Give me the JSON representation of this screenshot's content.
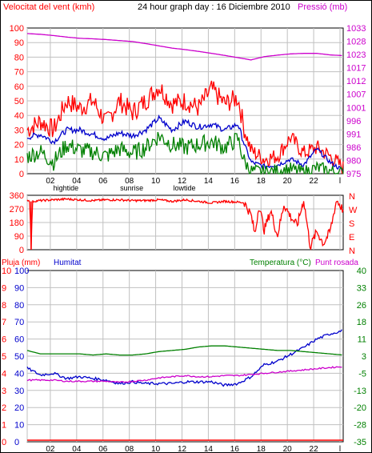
{
  "header": {
    "wind_label": "Velocitat del vent (kmh)",
    "title": "24 hour graph day : 16 Diciembre 2010",
    "pressure_label": "Pressió (mb)"
  },
  "colors": {
    "wind_max": "#ff0000",
    "wind_avg": "#0000cc",
    "wind_min": "#008000",
    "pressure": "#cc00cc",
    "direction": "#ff0000",
    "rain": "#ff0000",
    "humidity": "#0000cc",
    "temperature": "#008000",
    "dewpoint": "#cc00cc",
    "grid": "#c0c0c0",
    "bg": "#ffffff"
  },
  "time_axis": {
    "tick_labels": [
      "02",
      "04",
      "06",
      "08",
      "10",
      "12",
      "14",
      "16",
      "18",
      "20",
      "22",
      "l"
    ],
    "event_labels": [
      {
        "label": "hightide",
        "hour": 3
      },
      {
        "label": "sunrise",
        "hour": 8
      },
      {
        "label": "lowtide",
        "hour": 12
      }
    ]
  },
  "direction_axis": {
    "left_ticks": [
      "360",
      "270",
      "180",
      "90",
      "0"
    ],
    "right_letters": [
      "N",
      "W",
      "S",
      "E",
      "N"
    ]
  },
  "lower": {
    "rain_label": "Pluja (mm)",
    "humidity_label": "Humitat",
    "temp_label": "Temperatura (°C)",
    "dew_label": "Punt rosada"
  },
  "chart_data": [
    {
      "type": "line",
      "title": "24 hour graph day : 16 Diciembre 2010",
      "xlabel": "",
      "ylabel": "Velocitat del vent (kmh)",
      "y2label": "Pressió (mb)",
      "xlim": [
        0,
        24
      ],
      "ylim": [
        0,
        100
      ],
      "y2lim": [
        975,
        1033
      ],
      "yticks": [
        0,
        10,
        20,
        30,
        40,
        50,
        60,
        70,
        80,
        90,
        100
      ],
      "y2ticks": [
        "975",
        "980",
        "986",
        "991",
        "996",
        "1001",
        "1007",
        "1012",
        "1017",
        "1023",
        "1028",
        "1033"
      ],
      "series": [
        {
          "key": "wind_max",
          "x": [
            0,
            1,
            2,
            3,
            4,
            5,
            6,
            7,
            8,
            9,
            10,
            11,
            12,
            13,
            14,
            15,
            16,
            16.5,
            17,
            18,
            19,
            20,
            21,
            22,
            23,
            24
          ],
          "values": [
            30,
            36,
            30,
            50,
            45,
            50,
            35,
            50,
            42,
            50,
            60,
            48,
            50,
            45,
            58,
            48,
            52,
            30,
            16,
            10,
            12,
            25,
            14,
            18,
            12,
            4
          ]
        },
        {
          "key": "wind_avg",
          "x": [
            0,
            1,
            2,
            3,
            4,
            5,
            6,
            7,
            8,
            9,
            10,
            11,
            12,
            13,
            14,
            15,
            16,
            16.5,
            17,
            18,
            19,
            20,
            21,
            22,
            23,
            24
          ],
          "values": [
            25,
            27,
            22,
            30,
            30,
            27,
            24,
            28,
            26,
            30,
            38,
            30,
            36,
            32,
            34,
            30,
            34,
            20,
            8,
            5,
            6,
            10,
            6,
            17,
            8,
            2
          ]
        },
        {
          "key": "wind_min",
          "x": [
            0,
            1,
            2,
            3,
            4,
            5,
            6,
            7,
            8,
            9,
            10,
            11,
            12,
            13,
            14,
            15,
            16,
            16.5,
            17,
            18,
            19,
            20,
            21,
            22,
            23,
            24
          ],
          "values": [
            12,
            15,
            8,
            20,
            16,
            15,
            12,
            17,
            14,
            18,
            26,
            20,
            18,
            20,
            22,
            18,
            24,
            8,
            2,
            1,
            2,
            3,
            1,
            4,
            2,
            0
          ]
        },
        {
          "key": "pressure",
          "axis": "y2",
          "x": [
            0,
            1,
            2,
            3,
            4,
            5,
            6,
            7,
            8,
            9,
            10,
            11,
            12,
            13,
            14,
            15,
            16,
            17,
            18,
            19,
            20,
            21,
            22,
            23,
            24
          ],
          "values": [
            "1030.8",
            "1030.5",
            "1030.0",
            "1029.4",
            "1028.9",
            "1028.7",
            "1028.4",
            "1028.0",
            "1027.6",
            "1026.8",
            "1025.9",
            "1025.0",
            "1024.4",
            "1023.7",
            "1022.9",
            "1022.1",
            "1021.2",
            "1020.3",
            "1021.6",
            "1022.2",
            "1022.7",
            "1022.9",
            "1022.9",
            "1022.3",
            "1022.0"
          ]
        }
      ]
    },
    {
      "type": "line",
      "title": "",
      "ylabel": "Direcció",
      "xlim": [
        0,
        24
      ],
      "ylim": [
        0,
        360
      ],
      "series": [
        {
          "key": "direction",
          "x": [
            0,
            0.2,
            0.3,
            0.4,
            1,
            2,
            3,
            4,
            5,
            6,
            7,
            8,
            9,
            10,
            11,
            12,
            13,
            14,
            15,
            16,
            16.5,
            17,
            17.3,
            17.6,
            18,
            18.5,
            19,
            19.5,
            20,
            20.5,
            21,
            21.5,
            22,
            22.5,
            23,
            23.5,
            24
          ],
          "values": [
            330,
            320,
            0,
            320,
            325,
            330,
            335,
            330,
            325,
            330,
            330,
            325,
            325,
            330,
            320,
            330,
            320,
            310,
            320,
            315,
            310,
            230,
            100,
            300,
            130,
            260,
            90,
            300,
            220,
            160,
            330,
            20,
            120,
            40,
            120,
            330,
            260
          ]
        }
      ]
    },
    {
      "type": "line",
      "title": "",
      "ylabel": "Pluja (mm)",
      "y2label": "Temperatura (°C)",
      "xlim": [
        0,
        24
      ],
      "ylim": [
        0,
        100
      ],
      "yticks_rain": [
        "0",
        "1",
        "2",
        "3",
        "4",
        "5",
        "6",
        "7",
        "8",
        "9",
        "10"
      ],
      "yticks_hum": [
        "0",
        "10",
        "20",
        "30",
        "40",
        "50",
        "60",
        "70",
        "80",
        "90",
        "100"
      ],
      "y2ticks": [
        "-35",
        "-28",
        "-20",
        "-13",
        "-5",
        "3",
        "11",
        "18",
        "26",
        "33",
        "40"
      ],
      "series": [
        {
          "key": "rain",
          "name": "Pluja (mm)",
          "x": [
            0,
            24
          ],
          "values": [
            0,
            0
          ]
        },
        {
          "key": "humidity",
          "name": "Humitat",
          "x": [
            0,
            1,
            2,
            3,
            4,
            5,
            6,
            7,
            8,
            9,
            10,
            11,
            12,
            13,
            14,
            15,
            16,
            17,
            18,
            19,
            20,
            21,
            22,
            23,
            24
          ],
          "values": [
            43,
            39,
            40,
            37,
            38,
            37,
            36,
            34,
            35,
            34,
            34,
            34,
            35,
            35,
            35,
            33,
            34,
            38,
            45,
            47,
            51,
            55,
            60,
            63,
            65
          ]
        },
        {
          "key": "temperature",
          "name": "Temperatura (°C)",
          "axis": "y2",
          "x": [
            0,
            1,
            2,
            3,
            4,
            5,
            6,
            7,
            8,
            9,
            10,
            11,
            12,
            13,
            14,
            15,
            16,
            17,
            18,
            19,
            20,
            21,
            22,
            23,
            24
          ],
          "values": [
            "5.0",
            "3.5",
            "3.5",
            "3.5",
            "3.5",
            "3.0",
            "3.5",
            "3.0",
            "3.0",
            "3.5",
            "4.5",
            "5.0",
            "5.5",
            "6.5",
            "7.0",
            "7.0",
            "6.5",
            "6.0",
            "5.5",
            "5.0",
            "5.0",
            "4.5",
            "4.0",
            "3.5",
            "3.0"
          ]
        },
        {
          "key": "dewpoint",
          "name": "Punt rosada",
          "axis": "y2",
          "x": [
            0,
            1,
            2,
            3,
            4,
            5,
            6,
            7,
            8,
            9,
            10,
            11,
            12,
            13,
            14,
            15,
            16,
            17,
            18,
            19,
            20,
            21,
            22,
            23,
            24
          ],
          "values": [
            "-8.0",
            "-8.0",
            "-8.0",
            "-8.5",
            "-8.5",
            "-8.5",
            "-8.5",
            "-9.0",
            "-8.5",
            "-8.0",
            "-7.0",
            "-6.5",
            "-6.0",
            "-6.5",
            "-6.5",
            "-6.0",
            "-6.0",
            "-5.5",
            "-5.0",
            "-4.5",
            "-4.0",
            "-3.5",
            "-3.0",
            "-2.5",
            "-2.0"
          ]
        }
      ]
    }
  ]
}
